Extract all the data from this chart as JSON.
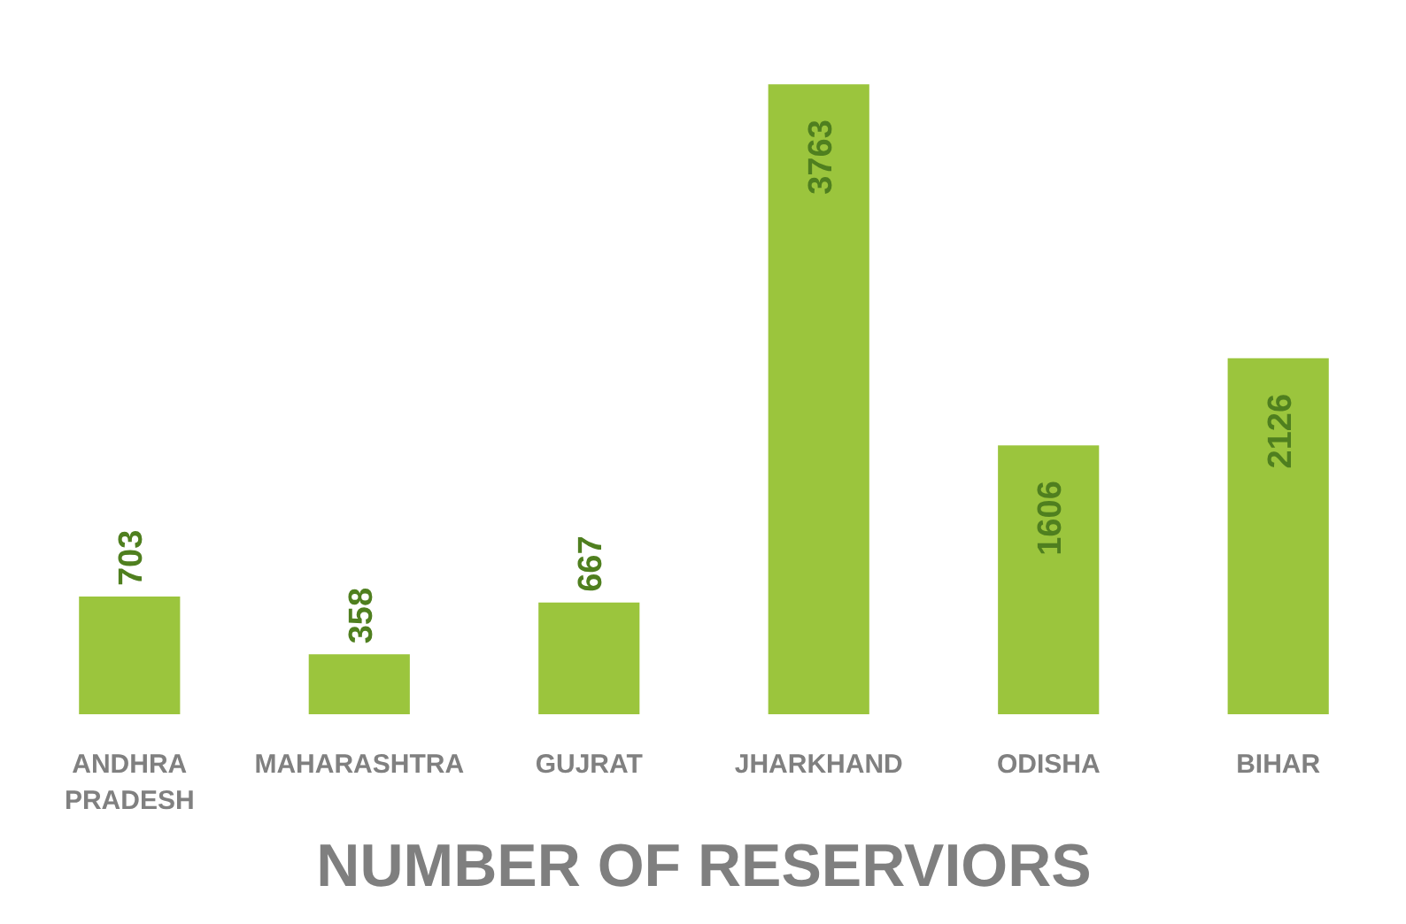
{
  "chart_data": {
    "type": "bar",
    "title": "NUMBER OF RESERVIORS",
    "categories": [
      "ANDHRA PRADESH",
      "MAHARASHTRA",
      "GUJRAT",
      "JHARKHAND",
      "ODISHA",
      "BIHAR"
    ],
    "values": [
      703,
      358,
      667,
      3763,
      1606,
      2126
    ],
    "color": "#9bc53d",
    "data_labels": true
  }
}
